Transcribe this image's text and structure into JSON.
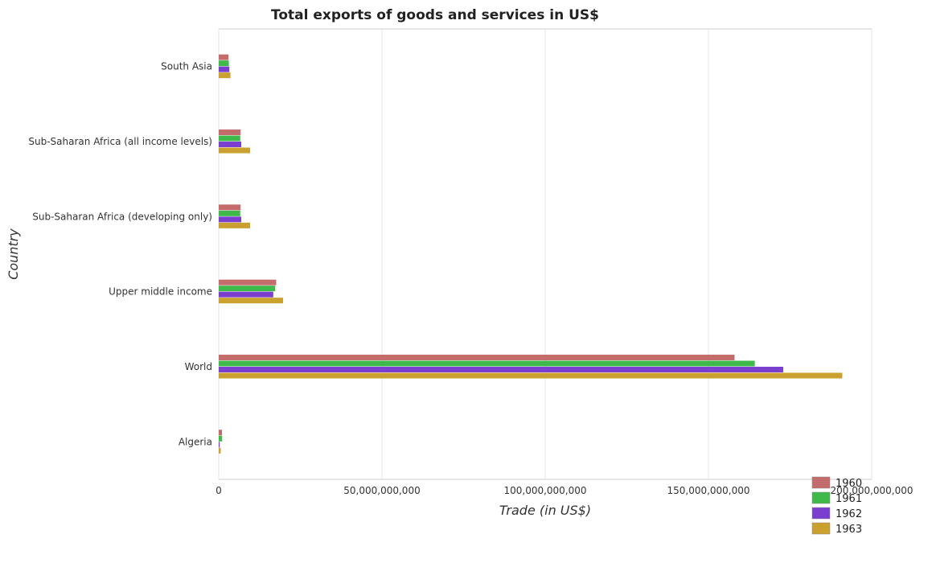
{
  "chart_data": {
    "type": "bar",
    "orientation": "horizontal",
    "title": "Total exports of goods and services in US$",
    "xlabel": "Trade (in US$)",
    "ylabel": "Country",
    "xlim": [
      0,
      200000000000
    ],
    "x_ticks": [
      0,
      50000000000,
      100000000000,
      150000000000,
      200000000000
    ],
    "x_tick_labels": [
      "0",
      "50,000,000,000",
      "100,000,000,000",
      "150,000,000,000",
      "200,000,000,000"
    ],
    "grid": true,
    "legend_position": "bottom-right",
    "categories": [
      "South Asia",
      "Sub-Saharan Africa (all income levels)",
      "Sub-Saharan Africa (developing only)",
      "Upper middle income",
      "World",
      "Algeria"
    ],
    "series": [
      {
        "name": "1960",
        "color": "#c46b6b",
        "values": [
          3000000000,
          6700000000,
          6700000000,
          17600000000,
          158000000000,
          1000000000
        ]
      },
      {
        "name": "1961",
        "color": "#3fb94a",
        "values": [
          3100000000,
          6600000000,
          6600000000,
          17300000000,
          164200000000,
          1050000000
        ]
      },
      {
        "name": "1962",
        "color": "#7b3fd0",
        "values": [
          3250000000,
          6900000000,
          6900000000,
          16700000000,
          172900000000,
          300000000
        ]
      },
      {
        "name": "1963",
        "color": "#caa02f",
        "values": [
          3600000000,
          9600000000,
          9600000000,
          19700000000,
          191000000000,
          600000000
        ]
      }
    ]
  }
}
